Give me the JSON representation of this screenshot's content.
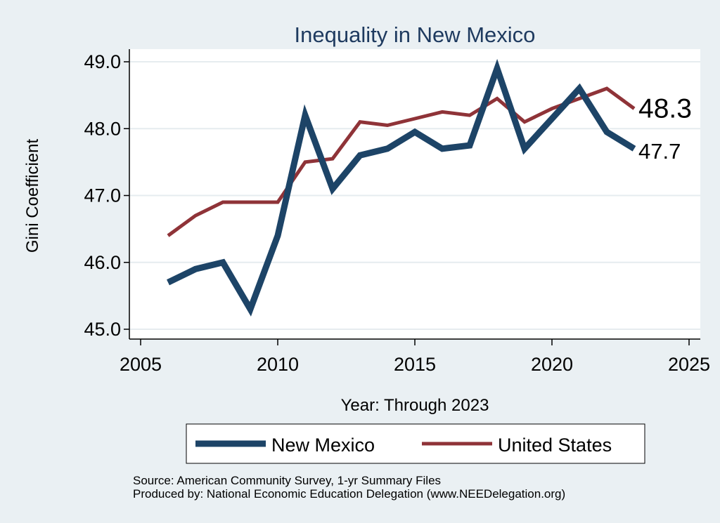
{
  "chart_data": {
    "type": "line",
    "title": "Inequality in New Mexico",
    "xlabel": "Year: Through 2023",
    "ylabel": "Gini Coefficient",
    "xlim": [
      2005,
      2025
    ],
    "ylim": [
      45.0,
      49.0
    ],
    "xticks": [
      "2005",
      "2010",
      "2015",
      "2020",
      "2025"
    ],
    "yticks": [
      "45.0",
      "46.0",
      "47.0",
      "48.0",
      "49.0"
    ],
    "grid": true,
    "legend_position": "bottom",
    "series": [
      {
        "name": "New Mexico",
        "color": "#1d4467",
        "x": [
          2006,
          2007,
          2008,
          2009,
          2010,
          2011,
          2012,
          2013,
          2014,
          2015,
          2016,
          2017,
          2018,
          2019,
          2020,
          2021,
          2022,
          2023
        ],
        "values": [
          45.7,
          45.9,
          46.0,
          45.3,
          46.4,
          48.2,
          47.1,
          47.6,
          47.7,
          47.95,
          47.7,
          47.75,
          48.9,
          47.7,
          48.15,
          48.6,
          47.95,
          47.7
        ],
        "end_label": "47.7"
      },
      {
        "name": "United States",
        "color": "#8f3338",
        "x": [
          2006,
          2007,
          2008,
          2009,
          2010,
          2011,
          2012,
          2013,
          2014,
          2015,
          2016,
          2017,
          2018,
          2019,
          2020,
          2021,
          2022,
          2023
        ],
        "values": [
          46.4,
          46.7,
          46.9,
          46.9,
          46.9,
          47.5,
          47.55,
          48.1,
          48.05,
          48.15,
          48.25,
          48.2,
          48.45,
          48.1,
          48.3,
          48.45,
          48.6,
          48.3
        ],
        "end_label": "48.3"
      }
    ],
    "source_note": "Source: American Community Survey, 1-yr Summary Files",
    "producer_note": "Produced by: National Economic Education Delegation (www.NEEDelegation.org)"
  }
}
